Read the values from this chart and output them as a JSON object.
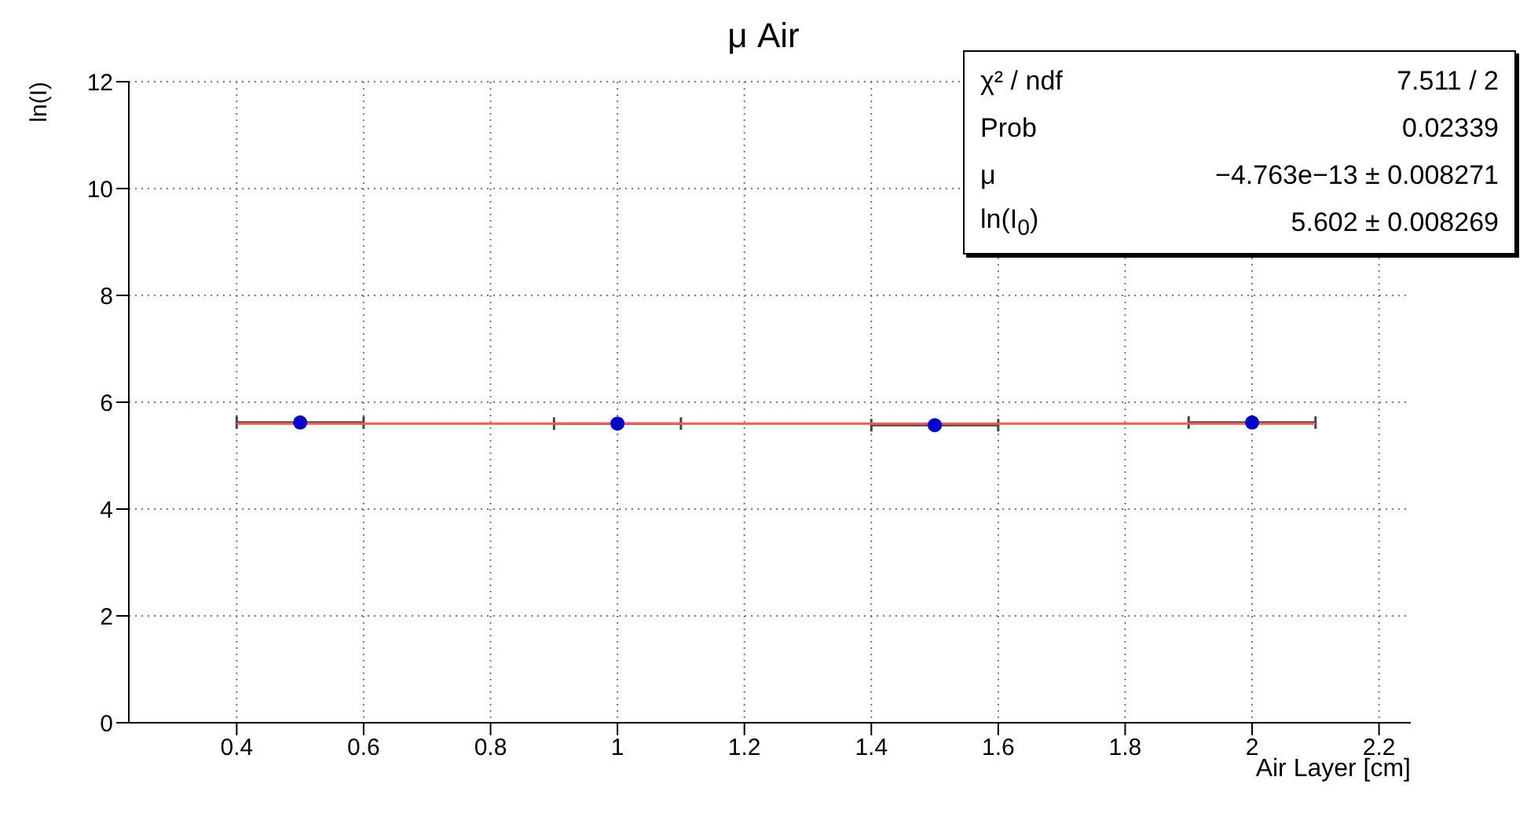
{
  "chart_data": {
    "type": "scatter",
    "title": "μ Air",
    "xlabel": "Air Layer [cm]",
    "ylabel": "ln(I)",
    "xlim": [
      0.23,
      2.25
    ],
    "xticks": [
      0.4,
      0.6,
      0.8,
      1,
      1.2,
      1.4,
      1.6,
      1.8,
      2,
      2.2
    ],
    "ylim": [
      0,
      12
    ],
    "yticks": [
      0,
      2,
      4,
      6,
      8,
      10,
      12
    ],
    "grid": true,
    "marker": "circle",
    "series": [
      {
        "color": "#0000cc",
        "x": [
          0.5,
          1,
          1.5,
          2
        ],
        "values": [
          5.62,
          5.6,
          5.57,
          5.62
        ],
        "xerrors": [
          0.1,
          0.1,
          0.1,
          0.1
        ]
      },
      {
        "type": "line",
        "color": "#ff5555",
        "x": [
          0.4,
          2.1
        ],
        "values": [
          5.6,
          5.6
        ],
        "marker": "none"
      }
    ],
    "annotations": [
      "χ² / ndf",
      "7.511 / 2",
      "Prob",
      "0.02339",
      "μ",
      "−4.763e−13 ± 0.008271",
      "ln(I$_{0}$)",
      "5.602 ± 0.008269"
    ]
  }
}
